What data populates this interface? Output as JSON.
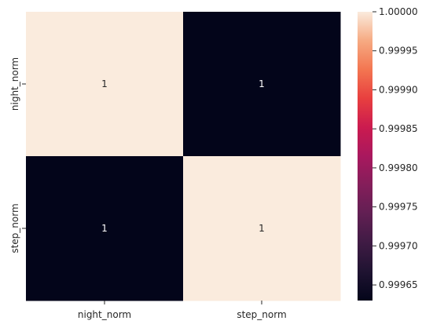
{
  "chart_data": {
    "type": "heatmap",
    "x_categories": [
      "night_norm",
      "step_norm"
    ],
    "y_categories": [
      "night_norm",
      "step_norm"
    ],
    "values": [
      [
        1.0,
        0.99963
      ],
      [
        0.99963,
        1.0
      ]
    ],
    "annotations": [
      [
        "1",
        "1"
      ],
      [
        "1",
        "1"
      ]
    ],
    "colorbar": {
      "min": 0.99963,
      "max": 1.0,
      "ticks": [
        1.0,
        0.99995,
        0.9999,
        0.99985,
        0.9998,
        0.99975,
        0.9997,
        0.99965
      ],
      "tick_labels": [
        "1.00000",
        "0.99995",
        "0.99990",
        "0.99985",
        "0.99980",
        "0.99975",
        "0.99970",
        "0.99965"
      ]
    },
    "colormap": "rocket",
    "colors": {
      "low": "#03051a",
      "high": "#faebdd",
      "low_label": "#ffffff",
      "high_label": "#262626"
    }
  }
}
